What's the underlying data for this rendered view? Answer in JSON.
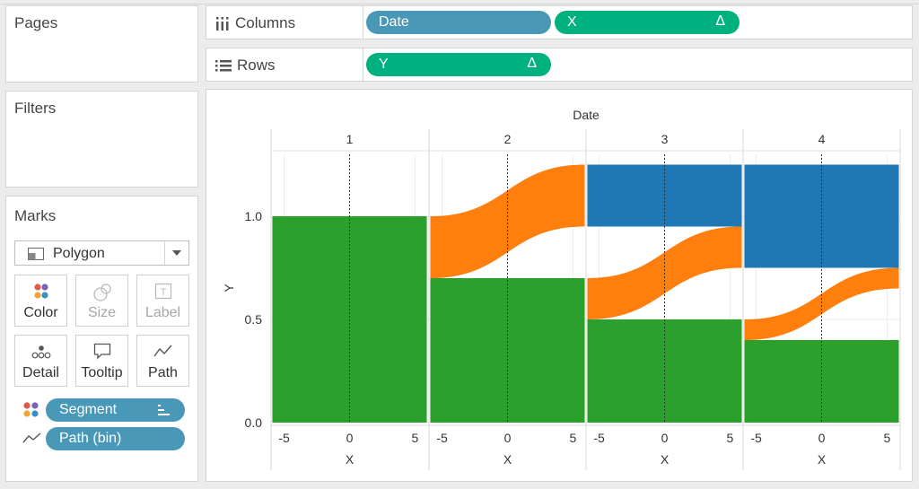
{
  "sidebar": {
    "pages_title": "Pages",
    "filters_title": "Filters",
    "marks_title": "Marks",
    "mark_type": "Polygon",
    "mark_buttons": [
      "Color",
      "Size",
      "Label",
      "Detail",
      "Tooltip",
      "Path"
    ],
    "mark_fields": [
      {
        "label": "Segment",
        "role": "color"
      },
      {
        "label": "Path (bin)",
        "role": "path"
      }
    ]
  },
  "shelves": {
    "columns_label": "Columns",
    "rows_label": "Rows",
    "columns_pills": [
      {
        "label": "Date",
        "color": "#4a98b8"
      },
      {
        "label": "X",
        "color": "#00b180",
        "table_calc": "Δ"
      }
    ],
    "rows_pills": [
      {
        "label": "Y",
        "color": "#00b180",
        "table_calc": "Δ"
      }
    ]
  },
  "colors": {
    "green": "#2ca02c",
    "orange": "#ff7f0e",
    "blue": "#1f77b4",
    "pill_blue": "#4a98b8",
    "pill_green": "#00b180"
  },
  "chart_data": {
    "type": "area",
    "header_title": "Date",
    "panel_labels": [
      "1",
      "2",
      "3",
      "4"
    ],
    "xlabel": "X",
    "ylabel": "Y",
    "x_ticks": [
      "-5",
      "0",
      "5"
    ],
    "y_ticks": [
      "0.0",
      "0.5",
      "1.0"
    ],
    "xlim": [
      -6,
      6
    ],
    "ylim": [
      0,
      1.3
    ],
    "reference_line_x": 0,
    "panels": [
      {
        "date": "1",
        "bands": [
          {
            "color": "#2ca02c",
            "left": [
              0,
              1.0
            ],
            "right": [
              0,
              1.0
            ]
          }
        ]
      },
      {
        "date": "2",
        "bands": [
          {
            "color": "#2ca02c",
            "left": [
              0,
              0.7
            ],
            "right": [
              0,
              0.7
            ]
          },
          {
            "color": "#ff7f0e",
            "left": [
              0.7,
              1.0
            ],
            "right": [
              0.95,
              1.25
            ]
          }
        ]
      },
      {
        "date": "3",
        "bands": [
          {
            "color": "#2ca02c",
            "left": [
              0,
              0.5
            ],
            "right": [
              0,
              0.5
            ]
          },
          {
            "color": "#ff7f0e",
            "left": [
              0.5,
              0.7
            ],
            "right": [
              0.75,
              0.95
            ]
          },
          {
            "color": "#1f77b4",
            "left": [
              0.95,
              1.25
            ],
            "right": [
              0.95,
              1.25
            ]
          }
        ]
      },
      {
        "date": "4",
        "bands": [
          {
            "color": "#2ca02c",
            "left": [
              0,
              0.4
            ],
            "right": [
              0,
              0.4
            ]
          },
          {
            "color": "#ff7f0e",
            "left": [
              0.4,
              0.5
            ],
            "right": [
              0.65,
              0.75
            ]
          },
          {
            "color": "#1f77b4",
            "left": [
              0.75,
              1.25
            ],
            "right": [
              0.75,
              1.25
            ]
          }
        ]
      }
    ]
  }
}
